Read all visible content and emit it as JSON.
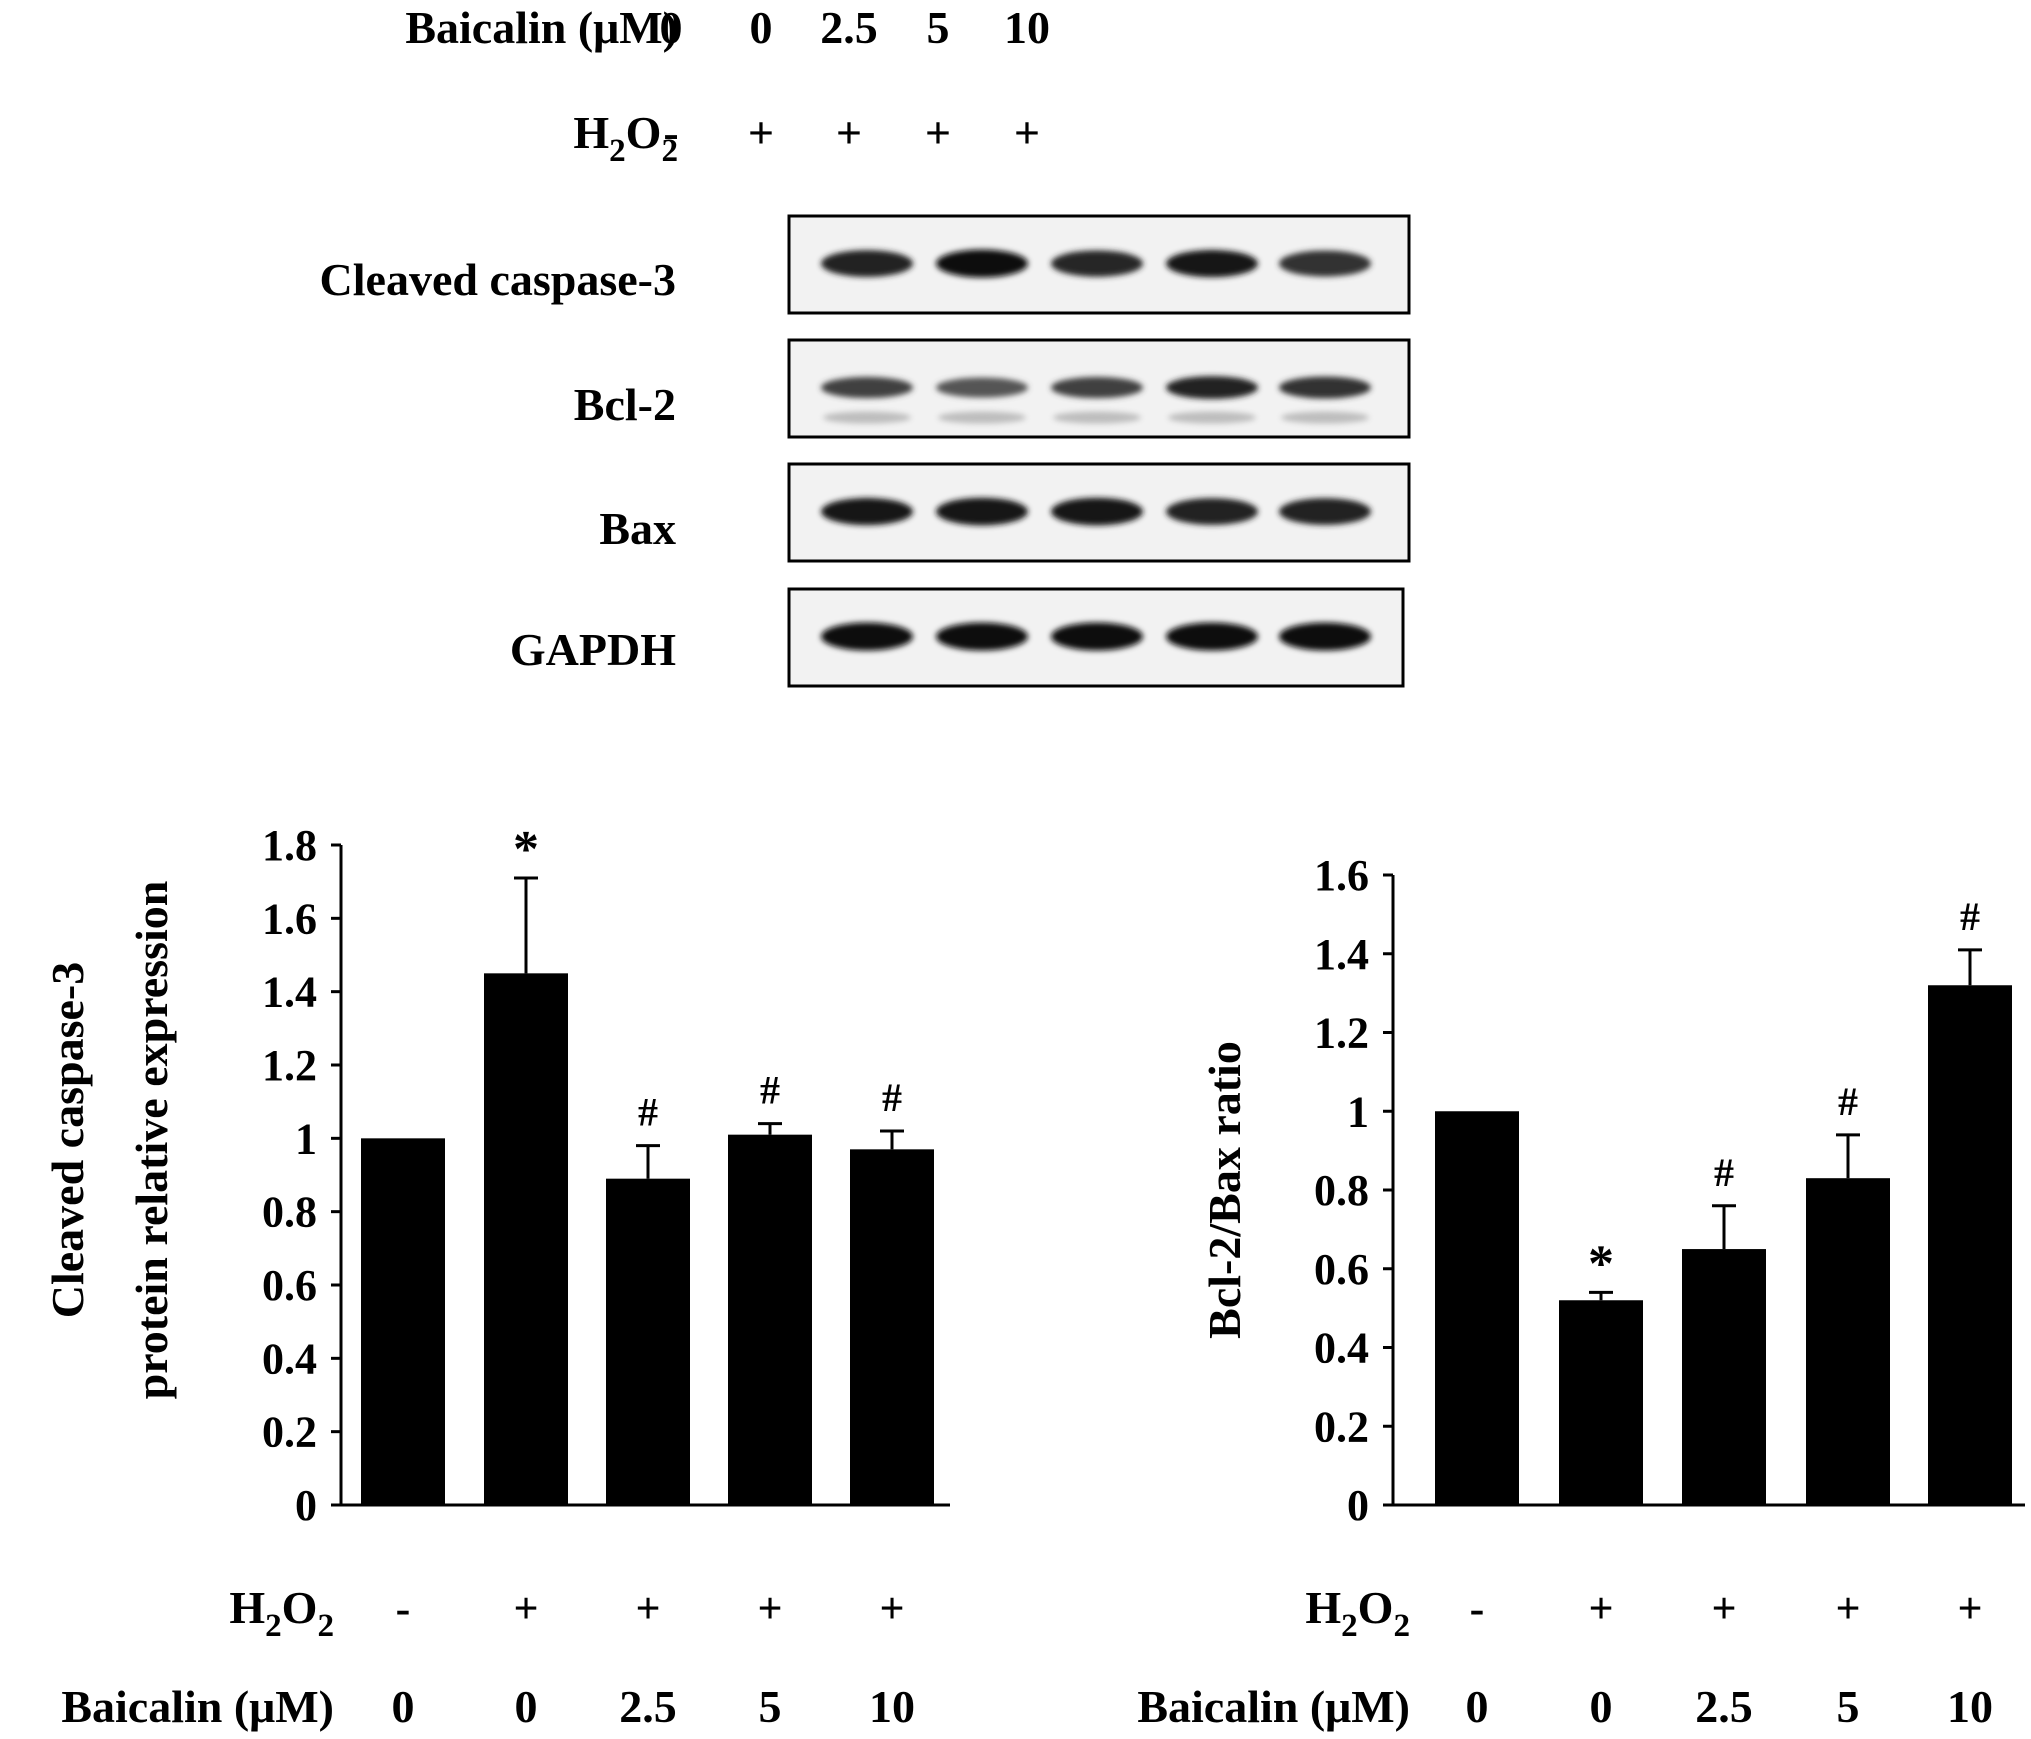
{
  "header": {
    "baicalin_label": "Baicalin (μM)",
    "baicalin_values": [
      "0",
      "0",
      "2.5",
      "5",
      "10"
    ],
    "h2o2_label": "H2O2",
    "h2o2_values": [
      "-",
      "+",
      "+",
      "+",
      "+"
    ]
  },
  "blot": {
    "rows": [
      {
        "label": "Cleaved caspase-3",
        "intensities": [
          0.85,
          1.0,
          0.8,
          0.9,
          0.75
        ]
      },
      {
        "label": "Bcl-2",
        "intensities": [
          0.65,
          0.5,
          0.65,
          0.85,
          0.75
        ]
      },
      {
        "label": "Bax",
        "intensities": [
          0.9,
          0.95,
          0.95,
          0.85,
          0.85
        ]
      },
      {
        "label": "GAPDH",
        "intensities": [
          1.0,
          1.0,
          1.0,
          1.0,
          1.0
        ]
      }
    ]
  },
  "chart_data": [
    {
      "type": "bar",
      "ylabel_line1": "Cleaved caspase-3",
      "ylabel_line2": "protein relative expression",
      "ylim": [
        0,
        1.8
      ],
      "yticks": [
        "0",
        "0.2",
        "0.4",
        "0.6",
        "0.8",
        "1",
        "1.2",
        "1.4",
        "1.6",
        "1.8"
      ],
      "values": [
        1.0,
        1.45,
        0.89,
        1.01,
        0.97
      ],
      "errors": [
        0.0,
        0.26,
        0.09,
        0.03,
        0.05
      ],
      "annotations": [
        "",
        "*",
        "#",
        "#",
        "#"
      ],
      "h2o2_label": "H2O2",
      "h2o2_values": [
        "-",
        "+",
        "+",
        "+",
        "+"
      ],
      "baicalin_label": "Baicalin (μM)",
      "baicalin_values": [
        "0",
        "0",
        "2.5",
        "5",
        "10"
      ]
    },
    {
      "type": "bar",
      "ylabel_line1": "Bcl-2/Bax ratio",
      "ylim": [
        0,
        1.6
      ],
      "yticks": [
        "0",
        "0.2",
        "0.4",
        "0.6",
        "0.8",
        "1",
        "1.2",
        "1.4",
        "1.6"
      ],
      "values": [
        1.0,
        0.52,
        0.65,
        0.83,
        1.32
      ],
      "errors": [
        0.0,
        0.02,
        0.11,
        0.11,
        0.09
      ],
      "annotations": [
        "",
        "*",
        "#",
        "#",
        "#"
      ],
      "h2o2_label": "H2O2",
      "h2o2_values": [
        "-",
        "+",
        "+",
        "+",
        "+"
      ],
      "baicalin_label": "Baicalin (μM)",
      "baicalin_values": [
        "0",
        "0",
        "2.5",
        "5",
        "10"
      ]
    }
  ]
}
